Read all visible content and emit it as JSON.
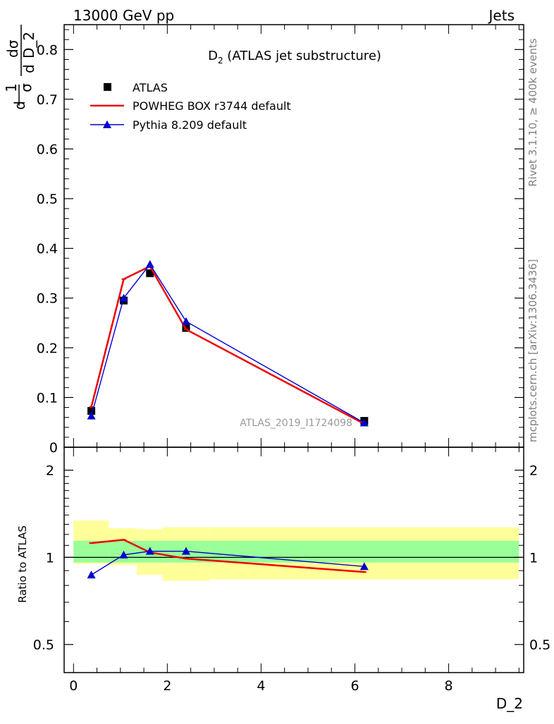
{
  "header": {
    "left_label": "13000 GeV pp",
    "right_label": "Jets"
  },
  "side_labels": {
    "rivet": "Rivet 3.1.10, ≥ 400k events",
    "mcplots": "mcplots.cern.ch [arXiv:1306.3436]"
  },
  "chart_data": [
    {
      "type": "line",
      "title": "D₂ (ATLAS jet substructure)",
      "title_main": "D",
      "title_sub": "2",
      "title_rest": " (ATLAS jet substructure)",
      "xlabel": "D_2",
      "ylabel": "1/σ dσ/d D_2",
      "ylabel_parts": {
        "one": "1",
        "sigma": "σ",
        "d1": "d",
        "d2": "d",
        "dsigma": "dσ",
        "var": "D_2"
      },
      "xlim": [
        -0.2,
        9.6
      ],
      "ylim": [
        0,
        0.85
      ],
      "yticks": [
        0,
        0.1,
        0.2,
        0.3,
        0.4,
        0.5,
        0.6,
        0.7,
        0.8
      ],
      "ytick_labels": [
        "0",
        "0.1",
        "0.2",
        "0.3",
        "0.4",
        "0.5",
        "0.6",
        "0.7",
        "0.8"
      ],
      "watermark": "ATLAS_2019_I1724098",
      "legend_position": "top-left",
      "series": [
        {
          "name": "ATLAS",
          "style": "markers",
          "marker": "square",
          "color": "#000000",
          "x": [
            0.38,
            1.07,
            1.63,
            2.4,
            6.2
          ],
          "y": [
            0.073,
            0.295,
            0.35,
            0.24,
            0.053
          ]
        },
        {
          "name": "POWHEG BOX r3744 default",
          "style": "line",
          "color": "#ee0000",
          "x": [
            0.38,
            1.07,
            1.63,
            2.4,
            6.2
          ],
          "y": [
            0.081,
            0.338,
            0.364,
            0.237,
            0.047
          ]
        },
        {
          "name": "Pythia 8.209 default",
          "style": "line+markers",
          "marker": "triangle",
          "color": "#0000cc",
          "x": [
            0.38,
            1.07,
            1.63,
            2.4,
            6.2
          ],
          "y": [
            0.063,
            0.3,
            0.368,
            0.253,
            0.049
          ]
        }
      ]
    },
    {
      "type": "line",
      "title": "",
      "xlabel": "D_2",
      "ylabel": "Ratio to ATLAS",
      "scale": "log",
      "xlim": [
        -0.2,
        9.6
      ],
      "ylim": [
        0.4,
        2.4
      ],
      "xticks": [
        0,
        2,
        4,
        6,
        8
      ],
      "xtick_labels": [
        "0",
        "2",
        "4",
        "6",
        "8"
      ],
      "yticks": [
        0.5,
        1,
        2
      ],
      "ytick_labels": [
        "0.5",
        "1",
        "2"
      ],
      "reference_line": 1,
      "uncertainty_bands": {
        "bin_edges": [
          0,
          0.75,
          1.35,
          1.9,
          2.9,
          9.5
        ],
        "inner_low": [
          0.96,
          0.96,
          0.96,
          0.96,
          0.96
        ],
        "inner_high": [
          1.14,
          1.14,
          1.14,
          1.14,
          1.14
        ],
        "outer_low": [
          0.95,
          0.94,
          0.87,
          0.83,
          0.84
        ],
        "outer_high": [
          1.34,
          1.26,
          1.25,
          1.27,
          1.27
        ],
        "inner_color": "#99ff99",
        "outer_color": "#ffff99"
      },
      "series": [
        {
          "name": "POWHEG BOX r3744 default",
          "color": "#ee0000",
          "x": [
            0.38,
            1.07,
            1.63,
            2.4,
            6.2
          ],
          "y": [
            1.12,
            1.15,
            1.04,
            0.99,
            0.89
          ]
        },
        {
          "name": "Pythia 8.209 default",
          "color": "#0000cc",
          "x": [
            0.38,
            1.07,
            1.63,
            2.4,
            6.2
          ],
          "y": [
            0.87,
            1.02,
            1.05,
            1.05,
            0.93
          ]
        }
      ]
    }
  ]
}
